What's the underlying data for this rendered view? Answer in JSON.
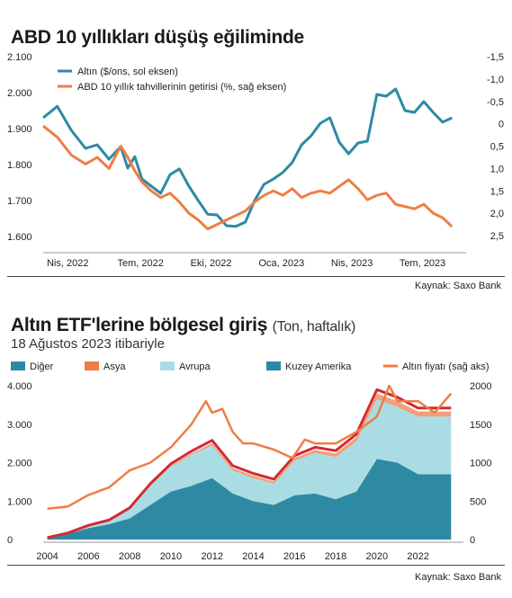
{
  "chart_data": [
    {
      "type": "line",
      "title": "ABD 10 yıllıkları düşüş eğiliminde",
      "source": "Kaynak: Saxo Bank",
      "x_ticks": [
        "Nis, 2022",
        "Tem, 2022",
        "Eki, 2022",
        "Oca, 2023",
        "Nis, 2023",
        "Tem, 2023"
      ],
      "y_left": {
        "ticks": [
          "2.100",
          "2.000",
          "1.900",
          "1.800",
          "1.700",
          "1.600"
        ],
        "range": [
          1590,
          2100
        ]
      },
      "y_right": {
        "ticks": [
          "-1,5",
          "-1,0",
          "-0,5",
          "0",
          "0,5",
          "1,0",
          "1,5",
          "2,0",
          "2,5"
        ],
        "range": [
          -1.5,
          2.6
        ],
        "inverted": true
      },
      "legend_position": "top-left",
      "series": [
        {
          "name": "Altın ($/ons, sol eksen)",
          "color": "#2e8aa3",
          "axis": "left",
          "x": [
            0,
            0.6,
            1.2,
            1.8,
            2.3,
            2.8,
            3.3,
            3.6,
            3.9,
            4.2,
            4.6,
            5.0,
            5.4,
            5.8,
            6.2,
            6.6,
            7.0,
            7.4,
            7.8,
            8.2,
            8.6,
            9.0,
            9.4,
            9.8,
            10.2,
            10.6,
            11.0,
            11.4,
            11.8,
            12.2,
            12.6,
            13.0,
            13.4,
            13.8,
            14.2,
            14.6,
            15.0,
            15.4,
            15.8,
            16.2,
            16.6,
            17.0,
            17.4
          ],
          "values": [
            1930,
            1962,
            1895,
            1845,
            1855,
            1815,
            1850,
            1790,
            1822,
            1760,
            1740,
            1720,
            1772,
            1788,
            1740,
            1700,
            1662,
            1660,
            1630,
            1628,
            1640,
            1700,
            1745,
            1760,
            1778,
            1806,
            1855,
            1880,
            1915,
            1930,
            1862,
            1830,
            1860,
            1865,
            1995,
            1990,
            2010,
            1950,
            1945,
            1975,
            1945,
            1918,
            1930
          ]
        },
        {
          "name": "ABD 10 yıllık tahvillerinin getirisi (%, sağ eksen)",
          "color": "#ef7d45",
          "axis": "right",
          "x": [
            0,
            0.6,
            1.2,
            1.8,
            2.3,
            2.8,
            3.3,
            3.6,
            3.9,
            4.2,
            4.6,
            5.0,
            5.4,
            5.8,
            6.2,
            6.6,
            7.0,
            7.4,
            7.8,
            8.2,
            8.6,
            9.0,
            9.4,
            9.8,
            10.2,
            10.6,
            11.0,
            11.4,
            11.8,
            12.2,
            12.6,
            13.0,
            13.4,
            13.8,
            14.2,
            14.6,
            15.0,
            15.4,
            15.8,
            16.2,
            16.6,
            17.0,
            17.4
          ],
          "values": [
            0.05,
            0.3,
            0.7,
            0.9,
            0.75,
            1.0,
            0.5,
            0.75,
            1.05,
            1.3,
            1.5,
            1.65,
            1.55,
            1.75,
            2.0,
            2.15,
            2.35,
            2.25,
            2.15,
            2.05,
            1.95,
            1.75,
            1.6,
            1.5,
            1.6,
            1.45,
            1.65,
            1.55,
            1.5,
            1.55,
            1.4,
            1.25,
            1.45,
            1.7,
            1.6,
            1.55,
            1.8,
            1.85,
            1.9,
            1.8,
            2.0,
            2.1,
            2.3
          ]
        }
      ]
    },
    {
      "type": "area",
      "title": "Altın ETF'lerine bölgesel giriş",
      "title_note": "(Ton, haftalık)",
      "subtitle": "18 Ağustos 2023 itibariyle",
      "source": "Kaynak: Saxo Bank",
      "x_ticks": [
        "2004",
        "2006",
        "2008",
        "2010",
        "2012",
        "2014",
        "2016",
        "2018",
        "2020",
        "2022"
      ],
      "y_left": {
        "ticks": [
          "4.000",
          "3.000",
          "2.000",
          "1.000",
          "0"
        ],
        "range": [
          0,
          4000
        ]
      },
      "y_right": {
        "ticks": [
          "2000",
          "1500",
          "1000",
          "500",
          "0"
        ],
        "range": [
          0,
          2000
        ]
      },
      "legend_position": "top",
      "series": [
        {
          "name": "Kuzey Amerika",
          "color": "#2e8aa3",
          "legend_color": "#2e8aa3",
          "x": [
            2004,
            2005,
            2006,
            2007,
            2008,
            2009,
            2010,
            2011,
            2012,
            2013,
            2014,
            2015,
            2016,
            2017,
            2018,
            2019,
            2020,
            2021,
            2022,
            2023.6
          ],
          "values": [
            50,
            150,
            300,
            400,
            550,
            900,
            1250,
            1400,
            1600,
            1200,
            1000,
            900,
            1150,
            1200,
            1050,
            1250,
            2100,
            2000,
            1700,
            1700
          ]
        },
        {
          "name": "Avrupa",
          "color": "#a9dde3",
          "legend_color": "#a9dde3",
          "x": [
            2004,
            2005,
            2006,
            2007,
            2008,
            2009,
            2010,
            2011,
            2012,
            2013,
            2014,
            2015,
            2016,
            2017,
            2018,
            2019,
            2020,
            2021,
            2022,
            2023.6
          ],
          "values": [
            0,
            20,
            60,
            100,
            250,
            500,
            650,
            800,
            850,
            600,
            600,
            550,
            900,
            1050,
            1100,
            1300,
            1550,
            1450,
            1500,
            1500
          ]
        },
        {
          "name": "Asya",
          "color": "#f0a07a",
          "legend_color": "#ef7d45",
          "x": [
            2004,
            2005,
            2006,
            2007,
            2008,
            2009,
            2010,
            2011,
            2012,
            2013,
            2014,
            2015,
            2016,
            2017,
            2018,
            2019,
            2020,
            2021,
            2022,
            2023.6
          ],
          "values": [
            0,
            0,
            0,
            0,
            5,
            10,
            20,
            40,
            60,
            60,
            60,
            60,
            70,
            80,
            90,
            110,
            150,
            150,
            130,
            130
          ]
        },
        {
          "name": "Diğer",
          "color": "#d42a33",
          "legend_color": "#2e8aa3",
          "x": [
            2004,
            2005,
            2006,
            2007,
            2008,
            2009,
            2010,
            2011,
            2012,
            2013,
            2014,
            2015,
            2016,
            2017,
            2018,
            2019,
            2020,
            2021,
            2022,
            2023.6
          ],
          "values": [
            0,
            0,
            10,
            10,
            20,
            40,
            50,
            60,
            70,
            60,
            60,
            60,
            60,
            70,
            70,
            80,
            100,
            100,
            90,
            90
          ]
        },
        {
          "name": "Altın fiyatı (sağ aks)",
          "color": "#ef7d45",
          "legend_color": "#ef7d45",
          "axis": "right",
          "x": [
            2004,
            2005,
            2006,
            2007,
            2008,
            2009,
            2010,
            2011,
            2011.7,
            2012,
            2012.5,
            2013,
            2013.5,
            2014,
            2015,
            2015.9,
            2016.5,
            2017,
            2018,
            2019,
            2020,
            2020.6,
            2021,
            2022,
            2022.8,
            2023.6
          ],
          "values": [
            400,
            430,
            580,
            680,
            900,
            1000,
            1200,
            1500,
            1800,
            1650,
            1700,
            1400,
            1250,
            1250,
            1170,
            1060,
            1300,
            1250,
            1250,
            1400,
            1600,
            2000,
            1800,
            1800,
            1650,
            1900
          ]
        }
      ]
    }
  ]
}
